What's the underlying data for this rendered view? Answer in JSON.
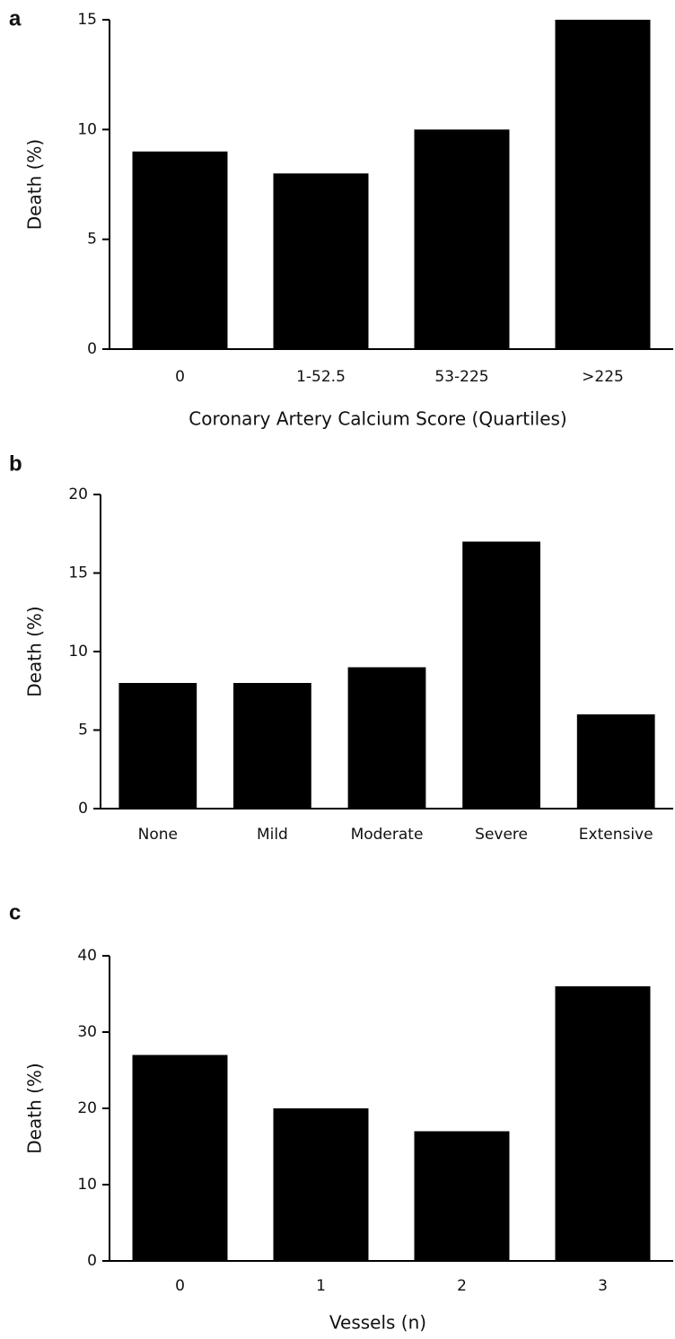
{
  "chart_data": [
    {
      "type": "bar",
      "label": "a",
      "y_label": "Death (%)",
      "x_label": "Coronary Artery Calcium Score (Quartiles)",
      "categories": [
        "0",
        "1-52.5",
        "53-225",
        ">225"
      ],
      "values": [
        9,
        8,
        10,
        15
      ],
      "color": "#000000",
      "ylim": [
        0,
        15
      ],
      "yticks": [
        0,
        5,
        10,
        15
      ]
    },
    {
      "type": "bar",
      "label": "b",
      "y_label": "Death (%)",
      "categories": [
        "None",
        "Mild",
        "Moderate",
        "Severe",
        "Extensive"
      ],
      "values": [
        8,
        8,
        9,
        17,
        6
      ],
      "color": "#000000",
      "ylim": [
        0,
        20
      ],
      "yticks": [
        0,
        5,
        10,
        15,
        20
      ]
    },
    {
      "type": "bar",
      "label": "c",
      "y_label": "Death (%)",
      "x_label": "Vessels (n)",
      "categories": [
        "0",
        "1",
        "2",
        "3"
      ],
      "values": [
        27,
        20,
        17,
        36
      ],
      "color": "#000000",
      "ylim": [
        0,
        40
      ],
      "yticks": [
        0,
        10,
        20,
        30,
        40
      ]
    }
  ]
}
